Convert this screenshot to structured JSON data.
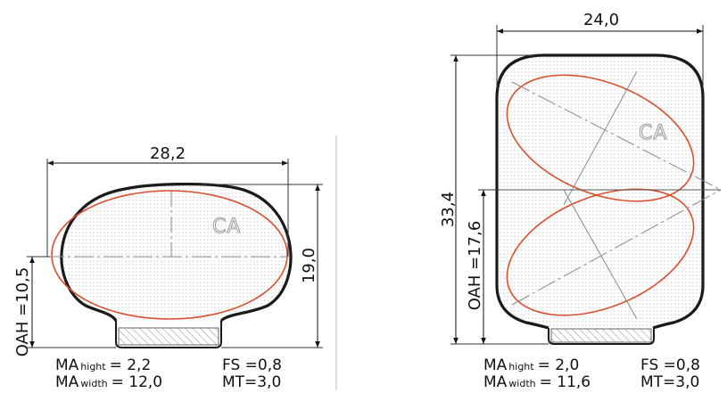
{
  "colors": {
    "outline": "#1a1a1a",
    "ca_line": "#d9502e",
    "hatch": "#888888",
    "dots": "#9a9a9a",
    "centerline": "#8a8a8a"
  },
  "left_view": {
    "width_dim": "28,2",
    "height_dim": "19,0",
    "oah_dim": "OAH =10,5",
    "ca_label": "CA",
    "specs": {
      "ma_prefix_1": "MA",
      "ma_sub_1": "hight",
      "ma_value_1": "= 2,2",
      "ma_prefix_2": "MA",
      "ma_sub_2": "width",
      "ma_value_2": "= 12,0",
      "fs": "FS =0,8",
      "mt": "MT=3,0"
    }
  },
  "right_view": {
    "width_dim": "24,0",
    "height_dim": "33,4",
    "oah_dim": "OAH =17,6",
    "ca_label": "CA",
    "specs": {
      "ma_prefix_1": "MA",
      "ma_sub_1": "hight",
      "ma_value_1": "= 2,0",
      "ma_prefix_2": "MA",
      "ma_sub_2": "width",
      "ma_value_2": "= 11,6",
      "fs": "FS =0,8",
      "mt": "MT=3,0"
    }
  }
}
